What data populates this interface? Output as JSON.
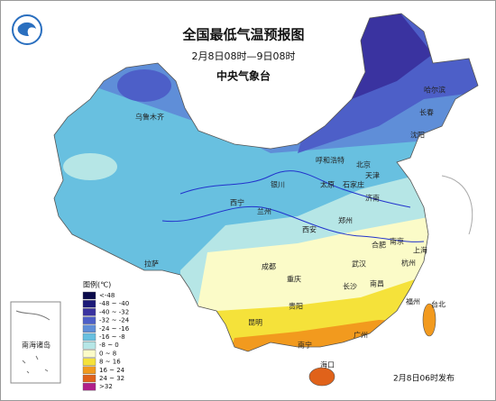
{
  "header": {
    "title": "全国最低气温预报图",
    "period": "2月8日08时—9日08时",
    "agency": "中央气象台"
  },
  "legend": {
    "title": "图例(℃)",
    "items": [
      {
        "label": "<-48",
        "color": "#0a0a4a"
      },
      {
        "label": "-48 ~ -40",
        "color": "#1c1a78"
      },
      {
        "label": "-40 ~ -32",
        "color": "#3a33a0"
      },
      {
        "label": "-32 ~ -24",
        "color": "#4d5fc8"
      },
      {
        "label": "-24 ~ -16",
        "color": "#5f8ed8"
      },
      {
        "label": "-16 ~ -8",
        "color": "#68c0e0"
      },
      {
        "label": "-8 ~ 0",
        "color": "#b6e6e6"
      },
      {
        "label": "0 ~ 8",
        "color": "#fbfbc8"
      },
      {
        "label": "8 ~ 16",
        "color": "#f5e23a"
      },
      {
        "label": "16 ~ 24",
        "color": "#f29a1e"
      },
      {
        "label": "24 ~ 32",
        "color": "#e0621a"
      },
      {
        "label": ">32",
        "color": "#b0208a"
      }
    ]
  },
  "inset_label": "南海诸岛",
  "cities": [
    "乌鲁木齐",
    "哈尔滨",
    "长春",
    "沈阳",
    "呼和浩特",
    "北京",
    "天津",
    "石家庄",
    "太原",
    "济南",
    "银川",
    "西宁",
    "兰州",
    "西安",
    "郑州",
    "合肥",
    "南京",
    "上海",
    "杭州",
    "武汉",
    "长沙",
    "南昌",
    "福州",
    "成都",
    "重庆",
    "贵阳",
    "昆明",
    "南宁",
    "广州",
    "海口",
    "台北",
    "拉萨"
  ],
  "footer": "2月8日06时发布"
}
